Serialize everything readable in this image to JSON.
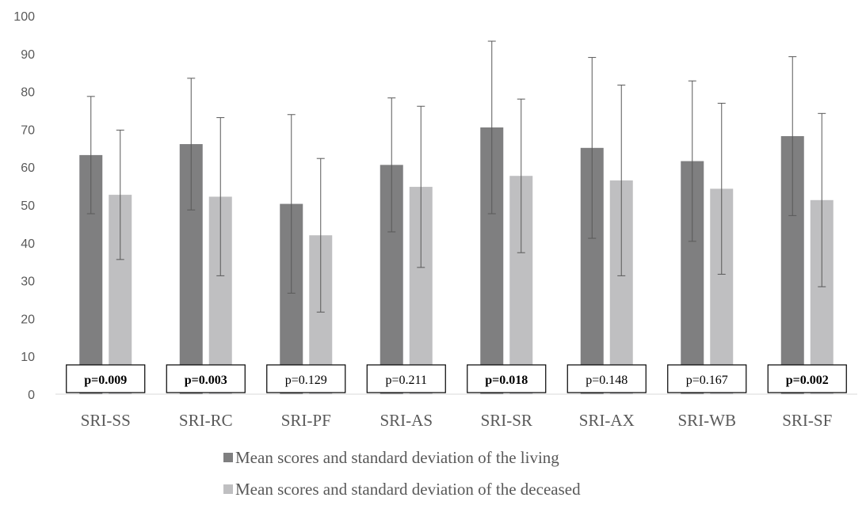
{
  "chart_data": {
    "type": "bar",
    "categories": [
      "SRI-SS",
      "SRI-RC",
      "SRI-PF",
      "SRI-AS",
      "SRI-SR",
      "SRI-AX",
      "SRI-WB",
      "SRI-SF"
    ],
    "ylim": [
      0,
      100
    ],
    "yticks": [
      0,
      10,
      20,
      30,
      40,
      50,
      60,
      70,
      80,
      90,
      100
    ],
    "grid": false,
    "legend_position": "bottom",
    "series": [
      {
        "name": "Mean scores and standard deviation of the living",
        "color": "#7f7f80",
        "values": [
          63.2,
          66.1,
          50.3,
          60.6,
          70.5,
          65.1,
          61.6,
          68.2
        ],
        "sd": [
          15.5,
          17.4,
          23.6,
          17.7,
          22.8,
          23.9,
          21.2,
          21.0
        ]
      },
      {
        "name": "Mean scores and standard deviation of the deceased",
        "color": "#bfbfc1",
        "values": [
          52.7,
          52.2,
          42.0,
          54.8,
          57.7,
          56.5,
          54.3,
          51.3
        ],
        "sd": [
          17.1,
          20.9,
          20.3,
          21.3,
          20.3,
          25.2,
          22.6,
          22.9
        ]
      }
    ],
    "annotations": [
      {
        "text": "p=0.009",
        "bold": true
      },
      {
        "text": "p=0.003",
        "bold": true
      },
      {
        "text": "p=0.129",
        "bold": false
      },
      {
        "text": "p=0.211",
        "bold": false
      },
      {
        "text": "p=0.018",
        "bold": true
      },
      {
        "text": "p=0.148",
        "bold": false
      },
      {
        "text": "p=0.167",
        "bold": false
      },
      {
        "text": "p=0.002",
        "bold": true
      }
    ]
  }
}
